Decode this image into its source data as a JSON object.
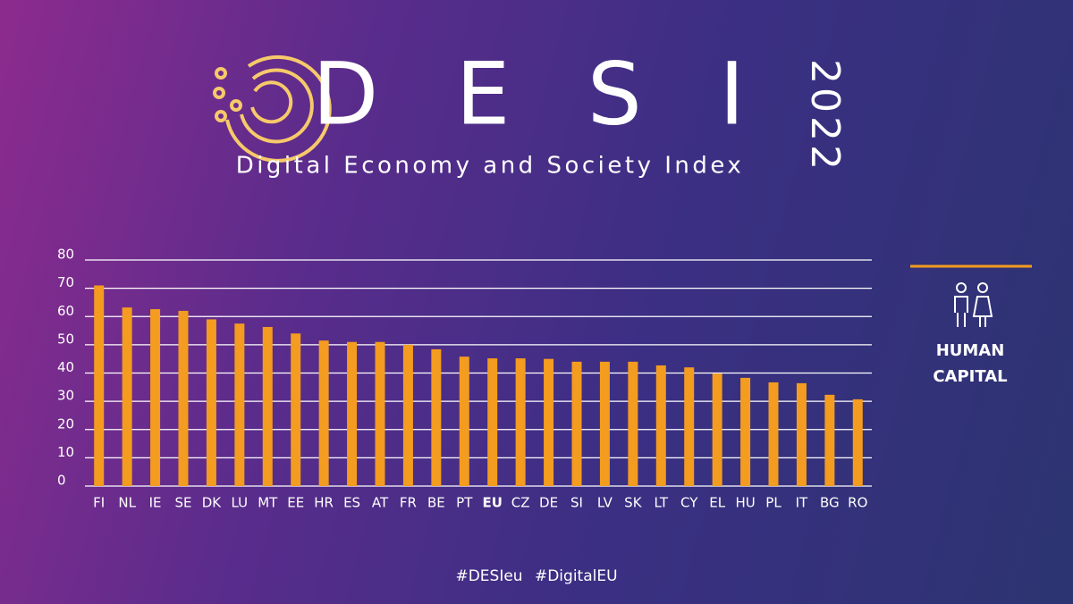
{
  "header": {
    "logo_text": "D E S I",
    "year": "2022",
    "subtitle": "Digital Economy and Society Index"
  },
  "chart_data": {
    "type": "bar",
    "categories": [
      "FI",
      "NL",
      "IE",
      "SE",
      "DK",
      "LU",
      "MT",
      "EE",
      "HR",
      "ES",
      "AT",
      "FR",
      "BE",
      "PT",
      "EU",
      "CZ",
      "DE",
      "SI",
      "LV",
      "SK",
      "LT",
      "CY",
      "EL",
      "HU",
      "PL",
      "IT",
      "BG",
      "RO"
    ],
    "values": [
      71,
      63.2,
      62.6,
      62,
      59,
      57.5,
      56.3,
      54,
      51.5,
      51,
      51,
      50,
      48.4,
      45.8,
      45.2,
      45.2,
      45,
      44,
      44,
      44,
      42.7,
      42,
      39.8,
      38.3,
      36.7,
      36.4,
      32.3,
      30.7
    ],
    "color": "#f39c1f",
    "bold_categories": [
      "EU"
    ],
    "ylim": [
      0,
      80
    ],
    "yticks": [
      0,
      10,
      20,
      30,
      40,
      50,
      60,
      70,
      80
    ],
    "grid": true
  },
  "panel": {
    "title": "HUMAN CAPITAL"
  },
  "footer": {
    "hashtags": "#DESIeu #DigitalEU"
  }
}
